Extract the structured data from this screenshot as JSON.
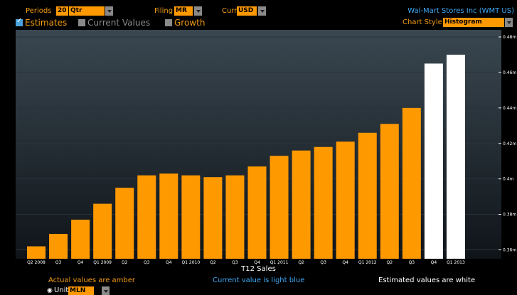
{
  "toolbar": {
    "periods_label": "Periods",
    "periods_value": "20",
    "frequency_value": "Qtr",
    "filing_label": "Filing",
    "filing_value": "MR",
    "curr_label": "Curr",
    "curr_value": "USD",
    "company": "Wal-Mart Stores Inc (WMT US)"
  },
  "options": {
    "estimates_label": "Estimates",
    "current_values_label": "Current Values",
    "growth_label": "Growth",
    "chart_style_label": "Chart Style",
    "chart_style_value": "Histogram"
  },
  "colors": {
    "actual": "#ff9900",
    "estimated": "#ffffff",
    "current": "#3fa9f5",
    "plot_top": "#3a4750",
    "plot_bottom": "#0f1419"
  },
  "chart_data": {
    "type": "bar",
    "xlabel": "T12 Sales",
    "ylim": [
      0.355,
      0.484
    ],
    "y_ticks": [
      "0.48m",
      "0.46m",
      "0.44m",
      "0.42m",
      "0.4m",
      "0.38m",
      "0.36m"
    ],
    "y_tick_values": [
      0.48,
      0.46,
      0.44,
      0.42,
      0.4,
      0.38,
      0.36
    ],
    "categories": [
      "Q2 2008",
      "Q3",
      "Q4",
      "Q1 2009",
      "Q2",
      "Q3",
      "Q4",
      "Q1 2010",
      "Q2",
      "Q3",
      "Q4",
      "Q1 2011",
      "Q2",
      "Q3",
      "Q4",
      "Q1 2012",
      "Q2",
      "Q3",
      "Q4",
      "Q1 2013"
    ],
    "values": [
      0.362,
      0.369,
      0.377,
      0.386,
      0.395,
      0.402,
      0.403,
      0.402,
      0.401,
      0.402,
      0.407,
      0.413,
      0.416,
      0.418,
      0.421,
      0.426,
      0.431,
      0.44,
      0.465,
      0.47
    ],
    "estimated": [
      false,
      false,
      false,
      false,
      false,
      false,
      false,
      false,
      false,
      false,
      false,
      false,
      false,
      false,
      false,
      false,
      false,
      false,
      true,
      true
    ]
  },
  "footer": {
    "actual_note": "Actual values are amber",
    "current_note": "Current value is light blue",
    "estimated_note": "Estimated values are white",
    "units_label": "Units",
    "units_value": "MLN"
  }
}
